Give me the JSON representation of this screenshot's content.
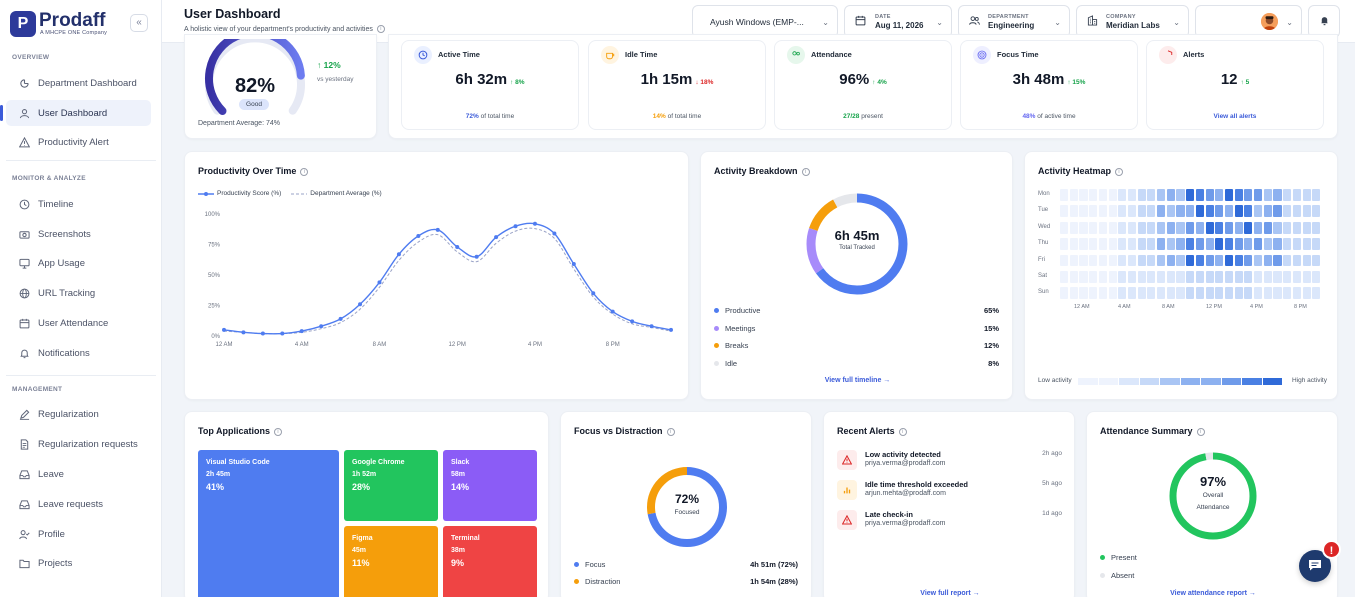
{
  "brand": {
    "letter": "P",
    "name": "Prodaff",
    "tagline": "A MHCPE ONE Company"
  },
  "sidebar": {
    "sections": [
      {
        "title": "OVERVIEW"
      },
      {
        "title": "MONITOR & ANALYZE"
      },
      {
        "title": "MANAGEMENT"
      }
    ],
    "items": [
      {
        "label": "Department Dashboard",
        "icon": "grid-icon"
      },
      {
        "label": "User Dashboard",
        "icon": "user-icon",
        "active": true
      },
      {
        "label": "Productivity Alert",
        "icon": "alert-icon"
      },
      {
        "label": "Timeline",
        "icon": "clock-icon"
      },
      {
        "label": "Screenshots",
        "icon": "camera-icon"
      },
      {
        "label": "App Usage",
        "icon": "monitor-icon"
      },
      {
        "label": "URL Tracking",
        "icon": "globe-icon"
      },
      {
        "label": "User Attendance",
        "icon": "calendar-icon"
      },
      {
        "label": "Notifications",
        "icon": "bell-icon"
      },
      {
        "label": "Regularization",
        "icon": "edit-icon"
      },
      {
        "label": "Regularization requests",
        "icon": "document-icon"
      },
      {
        "label": "Leave",
        "icon": "inbox-icon"
      },
      {
        "label": "Leave requests",
        "icon": "inbox-icon"
      },
      {
        "label": "Profile",
        "icon": "user-check-icon"
      },
      {
        "label": "Projects",
        "icon": "folder-icon"
      }
    ]
  },
  "header": {
    "title": "User Dashboard",
    "subtitle": "A holistic view of your department's productivity and activities",
    "user_select": "Ayush Windows (EMP-...",
    "date": {
      "label": "DATE",
      "value": "Aug 11, 2026"
    },
    "department": {
      "label": "DEPARTMENT",
      "value": "Engineering"
    },
    "company": {
      "label": "COMPANY",
      "value": "Meridian Labs"
    }
  },
  "score": {
    "value": "82%",
    "rating": "Good",
    "fraction": 0.82,
    "change": "12%",
    "change_label": "vs yesterday",
    "dept_avg": "Department Average: 74%"
  },
  "stats": [
    {
      "label": "Active Time",
      "value": "6h 32m",
      "delta": "8%",
      "delta_dir": "up",
      "foot_value": "72%",
      "foot_text": "of total time",
      "color": "#3b5bd9",
      "bg": "#eaf0ff"
    },
    {
      "label": "Idle Time",
      "value": "1h 15m",
      "delta": "18%",
      "delta_dir": "down",
      "foot_value": "14%",
      "foot_text": "of total time",
      "color": "#f59e0b",
      "bg": "#fff4e0"
    },
    {
      "label": "Attendance",
      "value": "96%",
      "delta": "4%",
      "delta_dir": "up",
      "foot_value": "27/28",
      "foot_text": "present",
      "color": "#16a34a",
      "bg": "#e6f7ec"
    },
    {
      "label": "Focus Time",
      "value": "3h 48m",
      "delta": "15%",
      "delta_dir": "up",
      "foot_value": "48%",
      "foot_text": "of active time",
      "color": "#6366f1",
      "bg": "#eeefff"
    },
    {
      "label": "Alerts",
      "value": "12",
      "delta": "5",
      "delta_dir": "up",
      "foot_value": "",
      "foot_text": "View all alerts",
      "color": "#dc2626",
      "bg": "#fdecec"
    }
  ],
  "productivity_chart": {
    "title": "Productivity Over Time",
    "legend": [
      "Productivity Score (%)",
      "Department Average (%)"
    ],
    "y_ticks": [
      "100%",
      "75%",
      "50%",
      "25%",
      "0%"
    ],
    "x_ticks": [
      "12 AM",
      "4 AM",
      "8 AM",
      "12 PM",
      "4 PM",
      "8 PM"
    ]
  },
  "chart_data": {
    "type": "line",
    "x": [
      0,
      1,
      2,
      3,
      4,
      5,
      6,
      7,
      8,
      9,
      10,
      11,
      12,
      13,
      14,
      15,
      16,
      17,
      18,
      19,
      20,
      21,
      22,
      23
    ],
    "series": [
      {
        "name": "Productivity Score (%)",
        "values": [
          5,
          3,
          2,
          2,
          4,
          8,
          14,
          26,
          44,
          67,
          82,
          87,
          73,
          65,
          81,
          90,
          92,
          84,
          59,
          35,
          20,
          12,
          8,
          5
        ]
      },
      {
        "name": "Department Average (%)",
        "values": [
          4,
          3,
          2,
          2,
          3,
          6,
          11,
          22,
          40,
          62,
          77,
          83,
          69,
          61,
          76,
          86,
          88,
          80,
          55,
          32,
          18,
          10,
          7,
          4
        ]
      }
    ],
    "xlabel": "",
    "ylabel": "",
    "ylim": [
      0,
      100
    ]
  },
  "activity": {
    "title": "Activity Breakdown",
    "center": "6h 45m",
    "center_sub": "Total Tracked",
    "items": [
      {
        "label": "Productive",
        "value": "65%",
        "pct": 65,
        "color": "#4f7cf0"
      },
      {
        "label": "Meetings",
        "value": "15%",
        "pct": 15,
        "color": "#a78bfa"
      },
      {
        "label": "Breaks",
        "value": "12%",
        "pct": 12,
        "color": "#f59e0b"
      },
      {
        "label": "Idle",
        "value": "8%",
        "pct": 8,
        "color": "#e5e7eb"
      }
    ],
    "link": "View full timeline →"
  },
  "heatmap": {
    "title": "Activity Heatmap",
    "days": [
      "Mon",
      "Tue",
      "Wed",
      "Thu",
      "Fri",
      "Sat",
      "Sun"
    ],
    "hours": [
      "12 AM",
      "4 AM",
      "8 AM",
      "12 PM",
      "4 PM",
      "8 PM"
    ],
    "low": "Low activity",
    "high": "High activity"
  },
  "top_apps": {
    "title": "Top Applications",
    "apps": [
      {
        "name": "Visual Studio Code",
        "time": "2h 45m",
        "pct": "41%",
        "color": "#4f7cf0"
      },
      {
        "name": "Google Chrome",
        "time": "1h 52m",
        "pct": "28%",
        "color": "#22c55e"
      },
      {
        "name": "Slack",
        "time": "58m",
        "pct": "14%",
        "color": "#8b5cf6"
      },
      {
        "name": "Figma",
        "time": "45m",
        "pct": "11%",
        "color": "#f59e0b"
      },
      {
        "name": "Terminal",
        "time": "38m",
        "pct": "9%",
        "color": "#ef4444"
      }
    ]
  },
  "focus": {
    "title": "Focus vs Distraction",
    "center": "72%",
    "center_sub": "Focused",
    "items": [
      {
        "label": "Focus",
        "value": "4h 51m (72%)",
        "pct": 72,
        "color": "#4f7cf0"
      },
      {
        "label": "Distraction",
        "value": "1h 54m (28%)",
        "pct": 28,
        "color": "#f59e0b"
      }
    ]
  },
  "alerts": {
    "title": "Recent Alerts",
    "items": [
      {
        "title": "Low activity detected",
        "email": "priya.verma@prodaff.com",
        "time": "2h ago",
        "icon": "warning-icon",
        "color": "#dc2626",
        "bg": "#fdecec"
      },
      {
        "title": "Idle time threshold exceeded",
        "email": "arjun.mehta@prodaff.com",
        "time": "5h ago",
        "icon": "bar-chart-icon",
        "color": "#f59e0b",
        "bg": "#fff4e0"
      },
      {
        "title": "Late check-in",
        "email": "priya.verma@prodaff.com",
        "time": "1d ago",
        "icon": "warning-icon",
        "color": "#dc2626",
        "bg": "#fdecec"
      }
    ],
    "link": "View full report →"
  },
  "attendance": {
    "title": "Attendance Summary",
    "center": "97%",
    "center_sub1": "Overall",
    "center_sub2": "Attendance",
    "items": [
      {
        "label": "Present",
        "pct": 97,
        "color": "#22c55e"
      },
      {
        "label": "Absent",
        "pct": 3,
        "color": "#e5e7eb"
      }
    ],
    "link": "View attendance report →"
  },
  "chat": {
    "badge": "!"
  }
}
